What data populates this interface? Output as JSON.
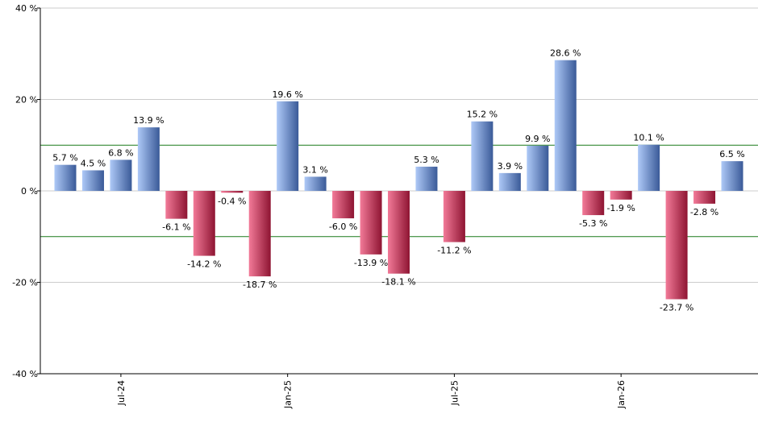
{
  "chart_data": {
    "type": "bar",
    "categories": [
      null,
      null,
      "Jul-24",
      null,
      null,
      null,
      null,
      null,
      "Jan-25",
      null,
      null,
      null,
      null,
      null,
      "Jul-25",
      null,
      null,
      null,
      null,
      null,
      "Jan-26",
      null,
      null,
      null,
      null
    ],
    "values": [
      5.7,
      4.5,
      6.8,
      13.9,
      -6.1,
      -14.2,
      -0.4,
      -18.7,
      19.6,
      3.1,
      -6.0,
      -13.9,
      -18.1,
      5.3,
      -11.2,
      15.2,
      3.9,
      9.9,
      28.6,
      -5.3,
      -1.9,
      10.1,
      -23.7,
      -2.8,
      6.5
    ],
    "value_labels": [
      "5.7 %",
      "4.5 %",
      "6.8 %",
      "13.9 %",
      "-6.1 %",
      "-14.2 %",
      "-0.4 %",
      "-18.7 %",
      "19.6 %",
      "3.1 %",
      "-6.0 %",
      "-13.9 %",
      "-18.1 %",
      "5.3 %",
      "-11.2 %",
      "15.2 %",
      "3.9 %",
      "9.9 %",
      "28.6 %",
      "-5.3 %",
      "-1.9 %",
      "10.1 %",
      "-23.7 %",
      "-2.8 %",
      "6.5 %"
    ],
    "positive_color": [
      "#aec9f7",
      "#3a5a98"
    ],
    "negative_color": [
      "#f27a98",
      "#8e1432"
    ],
    "ylim": [
      -40,
      40
    ],
    "yticks": [
      {
        "value": -40,
        "label": "-40 %"
      },
      {
        "value": -20,
        "label": "-20 %"
      },
      {
        "value": 0,
        "label": "0 %"
      },
      {
        "value": 20,
        "label": "20 %"
      },
      {
        "value": 40,
        "label": "40 %"
      }
    ],
    "reference_lines": [
      10,
      -10
    ],
    "reference_color": "#1a7a1a",
    "grid": true
  }
}
